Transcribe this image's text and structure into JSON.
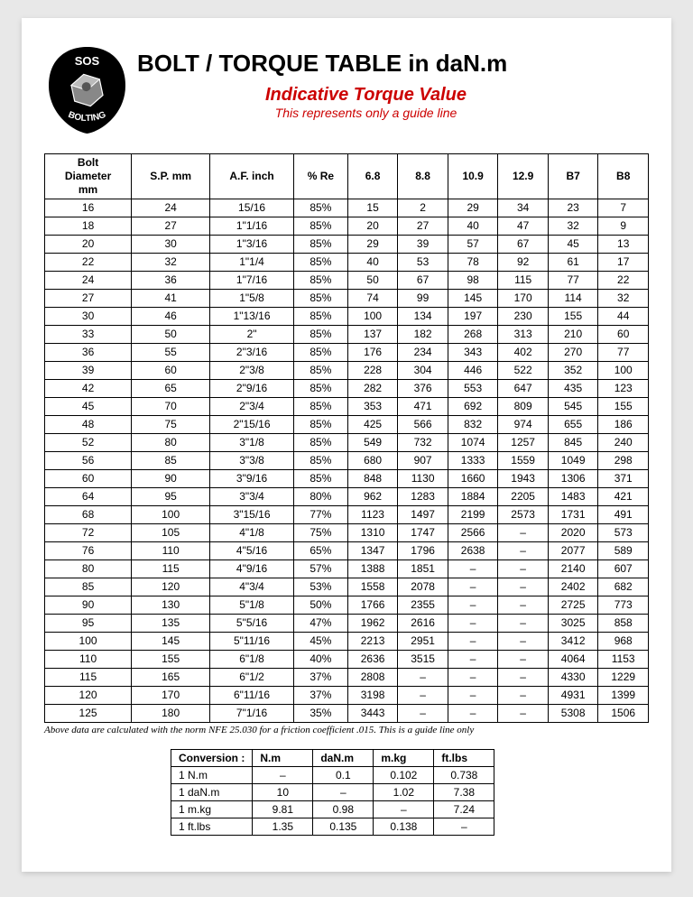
{
  "header": {
    "title": "BOLT / TORQUE TABLE in daN.m",
    "subtitle": "Indicative Torque Value",
    "subtitle2": "This represents only a guide line",
    "logo_top": "SOS",
    "logo_bottom": "BOLTING"
  },
  "colors": {
    "accent_red": "#cc0000",
    "text": "#000000",
    "page_bg": "#ffffff",
    "body_bg": "#e8e8e8",
    "border": "#000000"
  },
  "torque_table": {
    "columns": [
      "Bolt Diameter mm",
      "S.P. mm",
      "A.F. inch",
      "% Re",
      "6.8",
      "8.8",
      "10.9",
      "12.9",
      "B7",
      "B8"
    ],
    "rows": [
      [
        "16",
        "24",
        "15/16",
        "85%",
        "15",
        "2",
        "29",
        "34",
        "23",
        "7"
      ],
      [
        "18",
        "27",
        "1\"1/16",
        "85%",
        "20",
        "27",
        "40",
        "47",
        "32",
        "9"
      ],
      [
        "20",
        "30",
        "1\"3/16",
        "85%",
        "29",
        "39",
        "57",
        "67",
        "45",
        "13"
      ],
      [
        "22",
        "32",
        "1\"1/4",
        "85%",
        "40",
        "53",
        "78",
        "92",
        "61",
        "17"
      ],
      [
        "24",
        "36",
        "1\"7/16",
        "85%",
        "50",
        "67",
        "98",
        "115",
        "77",
        "22"
      ],
      [
        "27",
        "41",
        "1\"5/8",
        "85%",
        "74",
        "99",
        "145",
        "170",
        "114",
        "32"
      ],
      [
        "30",
        "46",
        "1\"13/16",
        "85%",
        "100",
        "134",
        "197",
        "230",
        "155",
        "44"
      ],
      [
        "33",
        "50",
        "2\"",
        "85%",
        "137",
        "182",
        "268",
        "313",
        "210",
        "60"
      ],
      [
        "36",
        "55",
        "2\"3/16",
        "85%",
        "176",
        "234",
        "343",
        "402",
        "270",
        "77"
      ],
      [
        "39",
        "60",
        "2\"3/8",
        "85%",
        "228",
        "304",
        "446",
        "522",
        "352",
        "100"
      ],
      [
        "42",
        "65",
        "2\"9/16",
        "85%",
        "282",
        "376",
        "553",
        "647",
        "435",
        "123"
      ],
      [
        "45",
        "70",
        "2\"3/4",
        "85%",
        "353",
        "471",
        "692",
        "809",
        "545",
        "155"
      ],
      [
        "48",
        "75",
        "2\"15/16",
        "85%",
        "425",
        "566",
        "832",
        "974",
        "655",
        "186"
      ],
      [
        "52",
        "80",
        "3\"1/8",
        "85%",
        "549",
        "732",
        "1074",
        "1257",
        "845",
        "240"
      ],
      [
        "56",
        "85",
        "3\"3/8",
        "85%",
        "680",
        "907",
        "1333",
        "1559",
        "1049",
        "298"
      ],
      [
        "60",
        "90",
        "3\"9/16",
        "85%",
        "848",
        "1130",
        "1660",
        "1943",
        "1306",
        "371"
      ],
      [
        "64",
        "95",
        "3\"3/4",
        "80%",
        "962",
        "1283",
        "1884",
        "2205",
        "1483",
        "421"
      ],
      [
        "68",
        "100",
        "3\"15/16",
        "77%",
        "1123",
        "1497",
        "2199",
        "2573",
        "1731",
        "491"
      ],
      [
        "72",
        "105",
        "4\"1/8",
        "75%",
        "1310",
        "1747",
        "2566",
        "–",
        "2020",
        "573"
      ],
      [
        "76",
        "110",
        "4\"5/16",
        "65%",
        "1347",
        "1796",
        "2638",
        "–",
        "2077",
        "589"
      ],
      [
        "80",
        "115",
        "4\"9/16",
        "57%",
        "1388",
        "1851",
        "–",
        "–",
        "2140",
        "607"
      ],
      [
        "85",
        "120",
        "4\"3/4",
        "53%",
        "1558",
        "2078",
        "–",
        "–",
        "2402",
        "682"
      ],
      [
        "90",
        "130",
        "5\"1/8",
        "50%",
        "1766",
        "2355",
        "–",
        "–",
        "2725",
        "773"
      ],
      [
        "95",
        "135",
        "5\"5/16",
        "47%",
        "1962",
        "2616",
        "–",
        "–",
        "3025",
        "858"
      ],
      [
        "100",
        "145",
        "5\"11/16",
        "45%",
        "2213",
        "2951",
        "–",
        "–",
        "3412",
        "968"
      ],
      [
        "110",
        "155",
        "6\"1/8",
        "40%",
        "2636",
        "3515",
        "–",
        "–",
        "4064",
        "1153"
      ],
      [
        "115",
        "165",
        "6\"1/2",
        "37%",
        "2808",
        "–",
        "–",
        "–",
        "4330",
        "1229"
      ],
      [
        "120",
        "170",
        "6\"11/16",
        "37%",
        "3198",
        "–",
        "–",
        "–",
        "4931",
        "1399"
      ],
      [
        "125",
        "180",
        "7\"1/16",
        "35%",
        "3443",
        "–",
        "–",
        "–",
        "5308",
        "1506"
      ]
    ]
  },
  "footnote": "Above data are calculated with the norm NFE 25.030 for a friction coefficient .015. This is a guide line only",
  "conversion_table": {
    "header": [
      "Conversion :",
      "N.m",
      "daN.m",
      "m.kg",
      "ft.lbs"
    ],
    "rows": [
      [
        "1 N.m",
        "–",
        "0.1",
        "0.102",
        "0.738"
      ],
      [
        "1 daN.m",
        "10",
        "–",
        "1.02",
        "7.38"
      ],
      [
        "1 m.kg",
        "9.81",
        "0.98",
        "–",
        "7.24"
      ],
      [
        "1 ft.lbs",
        "1.35",
        "0.135",
        "0.138",
        "–"
      ]
    ]
  }
}
